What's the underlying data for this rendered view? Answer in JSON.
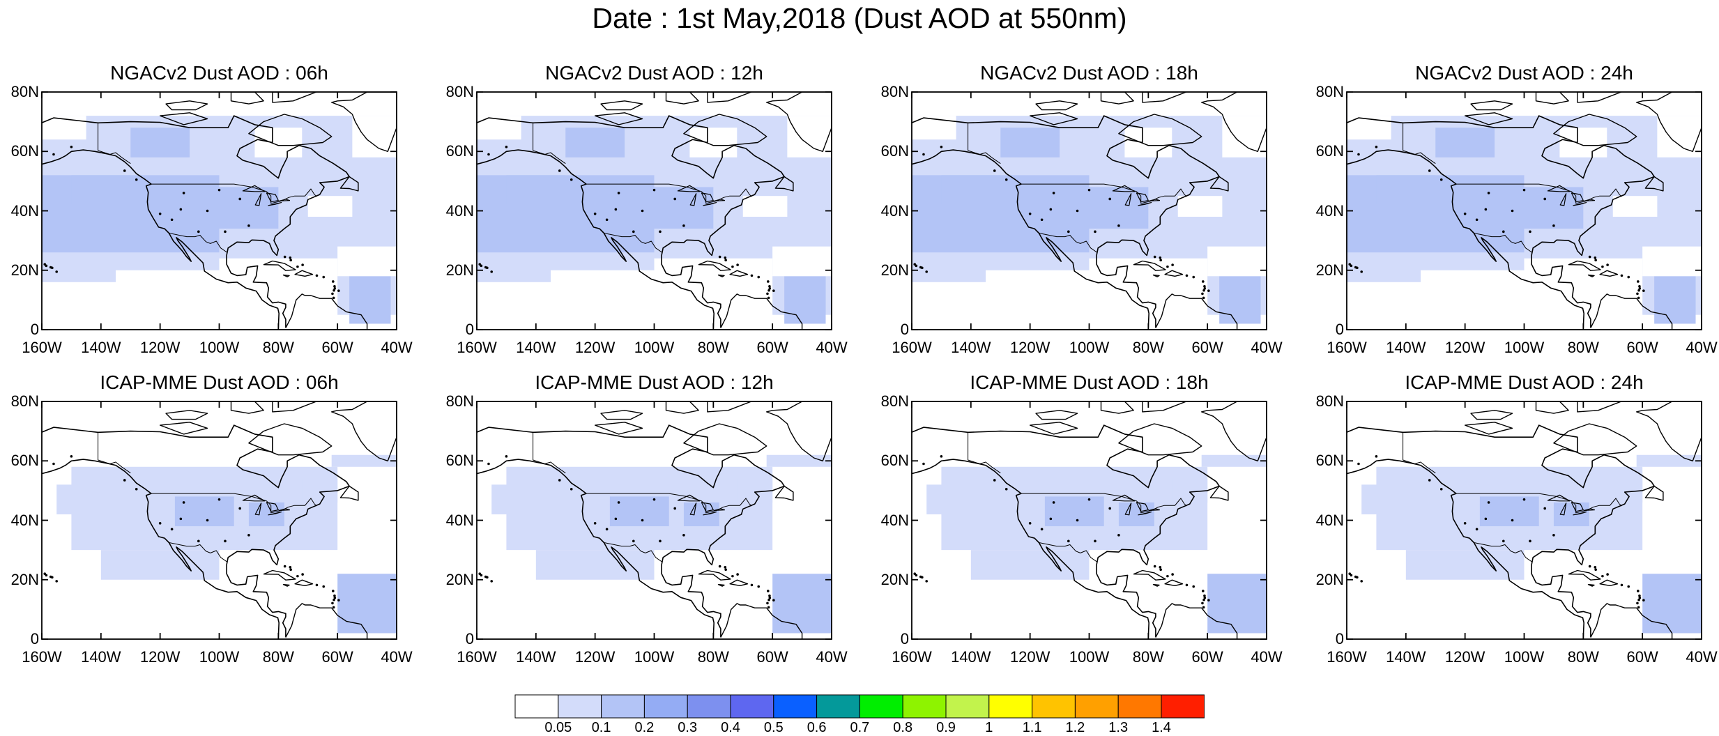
{
  "title": "Date : 1st May,2018 (Dust AOD at 550nm)",
  "panels": [
    {
      "title": "NGACv2 Dust AOD : 06h",
      "model": "ngac"
    },
    {
      "title": "NGACv2 Dust AOD : 12h",
      "model": "ngac"
    },
    {
      "title": "NGACv2 Dust AOD : 18h",
      "model": "ngac"
    },
    {
      "title": "NGACv2 Dust AOD : 24h",
      "model": "ngac"
    },
    {
      "title": "ICAP-MME Dust AOD : 06h",
      "model": "icap"
    },
    {
      "title": "ICAP-MME Dust AOD : 12h",
      "model": "icap"
    },
    {
      "title": "ICAP-MME Dust AOD : 18h",
      "model": "icap"
    },
    {
      "title": "ICAP-MME Dust AOD : 24h",
      "model": "icap"
    }
  ],
  "map": {
    "lon_range": [
      -160,
      -40
    ],
    "lat_range": [
      0,
      80
    ],
    "lat_ticks": [
      "0",
      "20N",
      "40N",
      "60N",
      "80N"
    ],
    "lon_ticks": [
      "160W",
      "140W",
      "120W",
      "100W",
      "80W",
      "60W",
      "40W"
    ]
  },
  "colorbar": {
    "labels": [
      "0.05",
      "0.1",
      "0.2",
      "0.3",
      "0.4",
      "0.5",
      "0.6",
      "0.7",
      "0.8",
      "0.9",
      "1",
      "1.1",
      "1.2",
      "1.3",
      "1.4"
    ],
    "colors": [
      "#ffffff",
      "#d3dcfa",
      "#b3c4f6",
      "#94acf4",
      "#7d90ef",
      "#5e67f0",
      "#0a60ff",
      "#04999a",
      "#00ee00",
      "#8ef300",
      "#c2f34c",
      "#ffff00",
      "#ffc300",
      "#ffa000",
      "#ff7800",
      "#ff1f00"
    ]
  }
}
